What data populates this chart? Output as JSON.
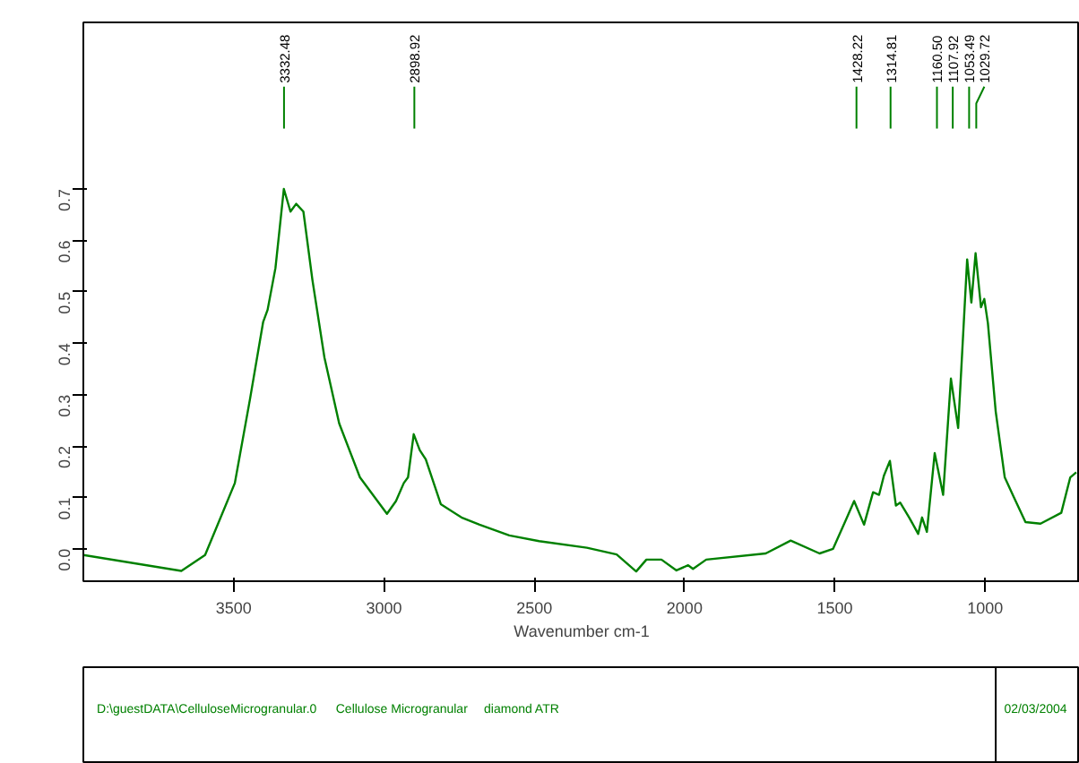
{
  "chart_data": {
    "type": "line",
    "xlabel": "Wavenumber cm-1",
    "x": [
      4000,
      3674,
      3595,
      3496,
      3446,
      3402,
      3387,
      3361,
      3333,
      3311,
      3292,
      3268,
      3238,
      3198,
      3149,
      3080,
      2990,
      2960,
      2934,
      2920,
      2901,
      2881,
      2861,
      2811,
      2742,
      2682,
      2583,
      2484,
      2325,
      2226,
      2161,
      2127,
      2077,
      2027,
      1988,
      1972,
      1928,
      1730,
      1647,
      1551,
      1506,
      1462,
      1436,
      1403,
      1373,
      1353,
      1337,
      1317,
      1297,
      1283,
      1253,
      1223,
      1210,
      1194,
      1168,
      1140,
      1114,
      1090,
      1060,
      1046,
      1032,
      1014,
      1003,
      991,
      965,
      935,
      906,
      866,
      816,
      747,
      717,
      697
    ],
    "series": [
      {
        "color": "#008000",
        "values": [
          -0.012,
          -0.043,
          -0.012,
          0.128,
          0.29,
          0.441,
          0.465,
          0.546,
          0.7,
          0.656,
          0.671,
          0.656,
          0.523,
          0.372,
          0.244,
          0.139,
          0.068,
          0.093,
          0.128,
          0.139,
          0.223,
          0.192,
          0.174,
          0.087,
          0.061,
          0.047,
          0.026,
          0.015,
          0.002,
          -0.011,
          -0.044,
          -0.021,
          -0.021,
          -0.042,
          -0.032,
          -0.039,
          -0.021,
          -0.009,
          0.016,
          -0.009,
          0.0,
          0.058,
          0.093,
          0.047,
          0.11,
          0.105,
          0.142,
          0.171,
          0.084,
          0.09,
          0.061,
          0.029,
          0.061,
          0.033,
          0.186,
          0.105,
          0.331,
          0.235,
          0.563,
          0.479,
          0.575,
          0.47,
          0.486,
          0.439,
          0.267,
          0.139,
          0.102,
          0.052,
          0.049,
          0.07,
          0.139,
          0.149
        ]
      }
    ],
    "xlim": [
      4000,
      685
    ],
    "ylim": [
      -0.063,
      1.024
    ],
    "xticks": [
      3500,
      3000,
      2500,
      2000,
      1500,
      1000
    ],
    "yticks": [
      {
        "value": 0,
        "label": "0.0"
      },
      0.1,
      0.2,
      0.3,
      0.4,
      0.5,
      0.6,
      0.7
    ],
    "grid": false,
    "marker": "none",
    "line_style": "solid",
    "annotations": [
      {
        "text": "3332.48",
        "x": 3332.48
      },
      {
        "text": "2898.92",
        "x": 2898.92
      },
      {
        "text": "1428.22",
        "x": 1428.22
      },
      {
        "text": "1314.81",
        "x": 1314.81
      },
      {
        "text": "1160.50",
        "x": 1160.5
      },
      {
        "text": "1107.92",
        "x": 1107.92
      },
      {
        "text": "1053.49",
        "x": 1053.49
      },
      {
        "text": "1029.72",
        "x": 1029.72
      },
      "D:\\guestDATA\\CelluloseMicrogranular.0",
      "Cellulose Microgranular",
      "diamond ATR",
      "02/03/2004"
    ]
  }
}
